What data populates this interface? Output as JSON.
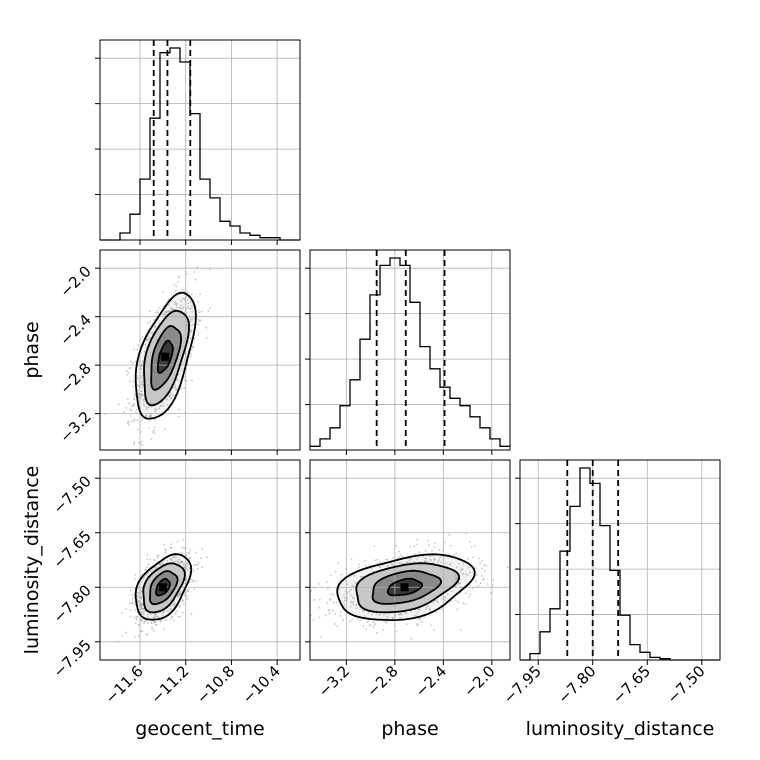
{
  "chart_data": {
    "type": "corner",
    "parameters": [
      "geocent_time",
      "phase",
      "luminosity_distance"
    ],
    "ranges": {
      "geocent_time": [
        -11.95,
        -10.2
      ],
      "phase": [
        -3.5,
        -1.85
      ],
      "luminosity_distance": [
        -8.0,
        -7.45
      ]
    },
    "ticks": {
      "geocent_time": [
        -11.6,
        -11.2,
        -10.8,
        -10.4
      ],
      "phase": [
        -3.2,
        -2.8,
        -2.4,
        -2.0
      ],
      "luminosity_distance": [
        -7.95,
        -7.8,
        -7.65,
        -7.5
      ]
    },
    "tick_labels": {
      "geocent_time": [
        "−11.6",
        "−11.2",
        "−10.8",
        "−10.4"
      ],
      "phase": [
        "−3.2",
        "−2.8",
        "−2.4",
        "−2.0"
      ],
      "luminosity_distance": [
        "−7.95",
        "−7.80",
        "−7.65",
        "−7.50"
      ]
    },
    "quantiles": {
      "geocent_time": [
        -11.48,
        -11.36,
        -11.16
      ],
      "phase": [
        -2.95,
        -2.71,
        -2.39
      ],
      "luminosity_distance": [
        -7.87,
        -7.8,
        -7.73
      ]
    },
    "histograms": {
      "geocent_time": {
        "edges": [
          -11.95,
          -11.8625,
          -11.775,
          -11.6875,
          -11.6,
          -11.5125,
          -11.425,
          -11.3375,
          -11.25,
          -11.1625,
          -11.075,
          -10.9875,
          -10.9,
          -10.8125,
          -10.725,
          -10.6375,
          -10.55,
          -10.4625,
          -10.375,
          -10.2875,
          -10.2
        ],
        "counts": [
          0,
          0,
          1.5,
          5.5,
          13,
          26,
          40,
          41,
          38,
          27,
          13,
          9,
          4,
          3,
          1.5,
          1,
          0.5,
          0.5,
          0,
          0
        ]
      },
      "phase": {
        "edges": [
          -3.5,
          -3.4175,
          -3.335,
          -3.2525,
          -3.17,
          -3.0875,
          -3.005,
          -2.9225,
          -2.84,
          -2.7575,
          -2.675,
          -2.5925,
          -2.51,
          -2.4275,
          -2.345,
          -2.2625,
          -2.18,
          -2.0975,
          -2.015,
          -1.9325,
          -1.85
        ],
        "counts": [
          0.5,
          1.5,
          3,
          6,
          9.5,
          15,
          21,
          25,
          26,
          25,
          20,
          14,
          11,
          8.5,
          7,
          6,
          4.5,
          3,
          1.5,
          0.5
        ]
      },
      "luminosity_distance": {
        "edges": [
          -8.0,
          -7.9725,
          -7.945,
          -7.9175,
          -7.89,
          -7.8625,
          -7.835,
          -7.8075,
          -7.78,
          -7.7525,
          -7.725,
          -7.6975,
          -7.67,
          -7.6425,
          -7.615,
          -7.5875,
          -7.56,
          -7.5325,
          -7.505,
          -7.4775,
          -7.45
        ],
        "counts": [
          0,
          0.5,
          2.2,
          4,
          8.5,
          12,
          15,
          13.8,
          10.5,
          7,
          3.5,
          1.2,
          0.6,
          0.2,
          0.1,
          0,
          0,
          0,
          0,
          0
        ]
      }
    },
    "correlations": {
      "phase_vs_geocent_time": {
        "mean_x": -11.38,
        "sd_x": 0.13,
        "mean_y": -2.73,
        "sd_y": 0.26,
        "corr": 0.55
      },
      "luminosity_distance_vs_geocent_time": {
        "mean_x": -11.4,
        "sd_x": 0.12,
        "mean_y": -7.8,
        "sd_y": 0.045,
        "corr": 0.45
      },
      "luminosity_distance_vs_phase": {
        "mean_x": -2.72,
        "sd_x": 0.28,
        "mean_y": -7.8,
        "sd_y": 0.045,
        "corr": 0.35
      }
    },
    "contour_levels_sigma": [
      0.5,
      1.0,
      1.5,
      2.0
    ],
    "grid": true,
    "colors": {
      "line": "#000000",
      "scatter": "#9a9a9a",
      "grid": "#b0b0b0"
    }
  }
}
